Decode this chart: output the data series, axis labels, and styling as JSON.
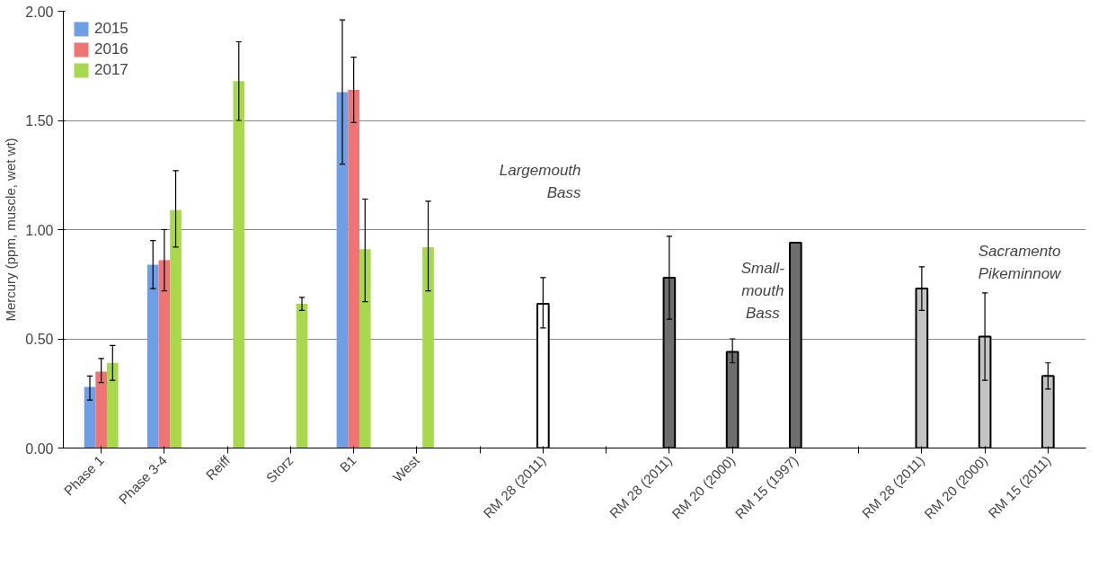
{
  "chart_data": {
    "type": "bar",
    "ylabel": "Mercury (ppm, muscle, wet wt)",
    "categories": [
      "Phase 1",
      "Phase 3-4",
      "Reiff",
      "Storz",
      "B1",
      "West",
      null,
      "RM 28 (2011)",
      null,
      "RM 28 (2011)",
      "RM 20 (2000)",
      "RM 15 (1997)",
      null,
      "RM 28 (2011)",
      "RM 20 (2000)",
      "RM 15 (2011)"
    ],
    "series": [
      {
        "name": "2015",
        "color": "#6e9fe6",
        "values": [
          0.28,
          0.84,
          null,
          null,
          1.63,
          null,
          null,
          null,
          null,
          null,
          null,
          null,
          null,
          null,
          null,
          null
        ],
        "errors": [
          [
            0.22,
            0.33
          ],
          [
            0.73,
            0.95
          ],
          null,
          null,
          [
            1.3,
            1.96
          ],
          null,
          null,
          null,
          null,
          null,
          null,
          null,
          null,
          null,
          null,
          null
        ]
      },
      {
        "name": "2016",
        "color": "#ef7474",
        "values": [
          0.35,
          0.86,
          null,
          null,
          1.64,
          null,
          null,
          null,
          null,
          null,
          null,
          null,
          null,
          null,
          null,
          null
        ],
        "errors": [
          [
            0.3,
            0.41
          ],
          [
            0.72,
            1.0
          ],
          null,
          null,
          [
            1.49,
            1.79
          ],
          null,
          null,
          null,
          null,
          null,
          null,
          null,
          null,
          null,
          null,
          null
        ]
      },
      {
        "name": "2017",
        "color": "#a8d84c",
        "values": [
          0.39,
          1.09,
          1.68,
          0.66,
          0.91,
          0.92,
          null,
          null,
          null,
          null,
          null,
          null,
          null,
          null,
          null,
          null
        ],
        "errors": [
          [
            0.31,
            0.47
          ],
          [
            0.92,
            1.27
          ],
          [
            1.5,
            1.86
          ],
          [
            0.63,
            0.69
          ],
          [
            0.67,
            1.14
          ],
          [
            0.72,
            1.13
          ],
          null,
          null,
          null,
          null,
          null,
          null,
          null,
          null,
          null,
          null
        ]
      },
      {
        "color": "#ffffff",
        "values": [
          null,
          null,
          null,
          null,
          null,
          null,
          null,
          0.66,
          null,
          null,
          null,
          null,
          null,
          null,
          null,
          null
        ],
        "errors": [
          null,
          null,
          null,
          null,
          null,
          null,
          null,
          [
            0.55,
            0.78
          ],
          null,
          null,
          null,
          null,
          null,
          null,
          null,
          null
        ]
      },
      {
        "color": "#6e6e6e",
        "values": [
          null,
          null,
          null,
          null,
          null,
          null,
          null,
          null,
          null,
          0.78,
          0.44,
          0.94,
          null,
          null,
          null,
          null
        ],
        "errors": [
          null,
          null,
          null,
          null,
          null,
          null,
          null,
          null,
          null,
          [
            0.59,
            0.97
          ],
          [
            0.39,
            0.5
          ],
          null,
          null,
          null,
          null,
          null
        ]
      },
      {
        "color": "#c4c4c4",
        "values": [
          null,
          null,
          null,
          null,
          null,
          null,
          null,
          null,
          null,
          null,
          null,
          null,
          null,
          0.73,
          0.51,
          0.33
        ],
        "errors": [
          null,
          null,
          null,
          null,
          null,
          null,
          null,
          null,
          null,
          null,
          null,
          null,
          null,
          [
            0.63,
            0.83
          ],
          [
            0.31,
            0.71
          ],
          [
            0.27,
            0.39
          ]
        ]
      }
    ],
    "annotations": [
      "Largemouth\nBass",
      "Small-\nmouth\nBass",
      "Sacramento\nPikeminnow"
    ],
    "ylim": [
      0,
      2
    ],
    "yticks": [
      {
        "value": 0,
        "label": "0.00"
      },
      {
        "value": 0.5,
        "label": "0.50"
      },
      {
        "value": 1,
        "label": "1.00"
      },
      {
        "value": 1.5,
        "label": "1.50"
      },
      {
        "value": 2,
        "label": "2.00"
      }
    ],
    "grid": "y",
    "legend": "top left"
  }
}
